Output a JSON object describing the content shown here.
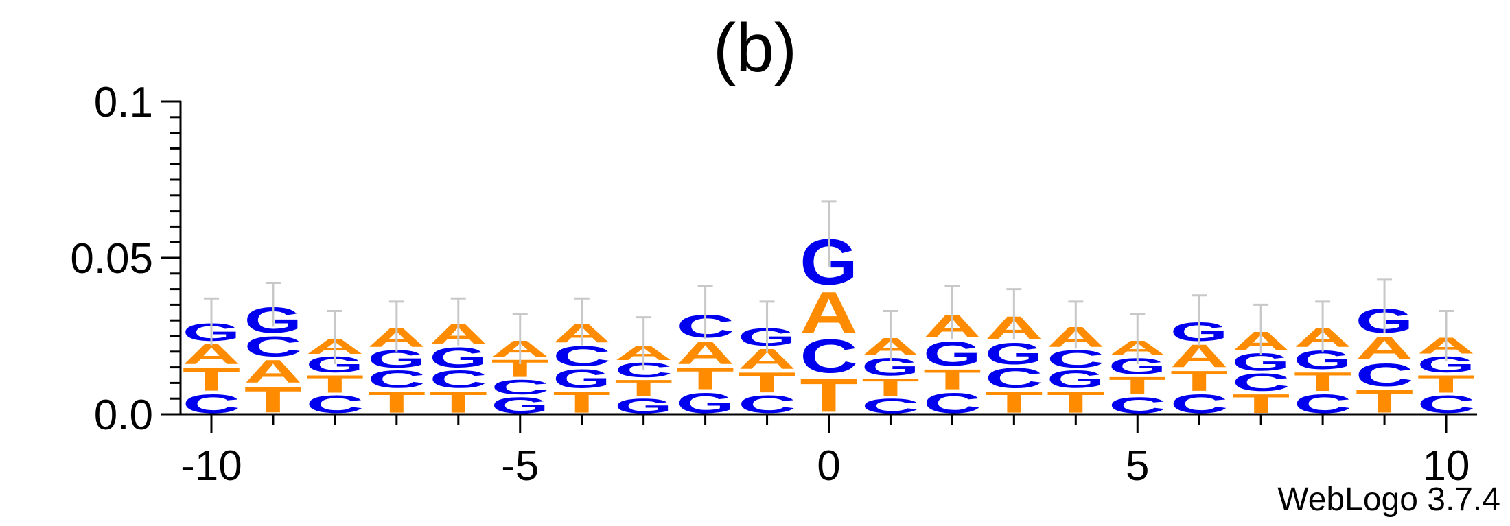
{
  "title": "(b)",
  "credit": "WebLogo 3.7.4",
  "colors": {
    "A": "#ff8c00",
    "T": "#ff8c00",
    "C": "#0000ee",
    "G": "#0000ee",
    "error_bar": "#c8c8c8",
    "axis": "#000000"
  },
  "chart_data": {
    "type": "sequence-logo",
    "title": "(b)",
    "xlabel": "",
    "ylabel": "",
    "xlim": [
      -10.5,
      10.5
    ],
    "ylim": [
      0,
      0.1
    ],
    "x_ticks": [
      -10,
      -5,
      0,
      5,
      10
    ],
    "y_ticks": [
      0.0,
      0.05,
      0.1
    ],
    "y_tick_labels": [
      "0.0",
      "0.05",
      "0.1"
    ],
    "x_tick_labels": [
      "-10",
      "-5",
      "0",
      "5",
      "10"
    ],
    "positions": [
      {
        "x": -10,
        "error_top": 0.037,
        "stack": [
          {
            "letter": "C",
            "height": 0.007
          },
          {
            "letter": "T",
            "height": 0.0085
          },
          {
            "letter": "A",
            "height": 0.0075
          },
          {
            "letter": "G",
            "height": 0.0065
          }
        ]
      },
      {
        "x": -9,
        "error_top": 0.042,
        "stack": [
          {
            "letter": "T",
            "height": 0.0095
          },
          {
            "letter": "A",
            "height": 0.0085
          },
          {
            "letter": "C",
            "height": 0.0075
          },
          {
            "letter": "G",
            "height": 0.0095
          }
        ]
      },
      {
        "x": -8,
        "error_top": 0.033,
        "stack": [
          {
            "letter": "C",
            "height": 0.0065
          },
          {
            "letter": "T",
            "height": 0.0065
          },
          {
            "letter": "G",
            "height": 0.006
          },
          {
            "letter": "A",
            "height": 0.0055
          }
        ]
      },
      {
        "x": -7,
        "error_top": 0.036,
        "stack": [
          {
            "letter": "T",
            "height": 0.008
          },
          {
            "letter": "C",
            "height": 0.0065
          },
          {
            "letter": "G",
            "height": 0.0065
          },
          {
            "letter": "A",
            "height": 0.007
          }
        ]
      },
      {
        "x": -6,
        "error_top": 0.037,
        "stack": [
          {
            "letter": "T",
            "height": 0.008
          },
          {
            "letter": "C",
            "height": 0.0065
          },
          {
            "letter": "G",
            "height": 0.0075
          },
          {
            "letter": "A",
            "height": 0.0075
          }
        ]
      },
      {
        "x": -5,
        "error_top": 0.032,
        "stack": [
          {
            "letter": "G",
            "height": 0.006
          },
          {
            "letter": "C",
            "height": 0.0055
          },
          {
            "letter": "T",
            "height": 0.0065
          },
          {
            "letter": "A",
            "height": 0.006
          }
        ]
      },
      {
        "x": -4,
        "error_top": 0.037,
        "stack": [
          {
            "letter": "T",
            "height": 0.008
          },
          {
            "letter": "G",
            "height": 0.007
          },
          {
            "letter": "C",
            "height": 0.0075
          },
          {
            "letter": "A",
            "height": 0.007
          }
        ]
      },
      {
        "x": -3,
        "error_top": 0.031,
        "stack": [
          {
            "letter": "G",
            "height": 0.0055
          },
          {
            "letter": "T",
            "height": 0.006
          },
          {
            "letter": "C",
            "height": 0.0055
          },
          {
            "letter": "A",
            "height": 0.0055
          }
        ]
      },
      {
        "x": -2,
        "error_top": 0.041,
        "stack": [
          {
            "letter": "G",
            "height": 0.0075
          },
          {
            "letter": "T",
            "height": 0.008
          },
          {
            "letter": "A",
            "height": 0.0085
          },
          {
            "letter": "C",
            "height": 0.0085
          }
        ]
      },
      {
        "x": -1,
        "error_top": 0.036,
        "stack": [
          {
            "letter": "C",
            "height": 0.0065
          },
          {
            "letter": "T",
            "height": 0.0075
          },
          {
            "letter": "A",
            "height": 0.0075
          },
          {
            "letter": "G",
            "height": 0.0065
          }
        ]
      },
      {
        "x": 0,
        "error_top": 0.068,
        "stack": [
          {
            "letter": "T",
            "height": 0.0125
          },
          {
            "letter": "C",
            "height": 0.0125
          },
          {
            "letter": "A",
            "height": 0.0155
          },
          {
            "letter": "G",
            "height": 0.017
          }
        ]
      },
      {
        "x": 1,
        "error_top": 0.033,
        "stack": [
          {
            "letter": "C",
            "height": 0.0055
          },
          {
            "letter": "T",
            "height": 0.0065
          },
          {
            "letter": "G",
            "height": 0.0065
          },
          {
            "letter": "A",
            "height": 0.0065
          }
        ]
      },
      {
        "x": 2,
        "error_top": 0.041,
        "stack": [
          {
            "letter": "C",
            "height": 0.0075
          },
          {
            "letter": "T",
            "height": 0.0075
          },
          {
            "letter": "G",
            "height": 0.009
          },
          {
            "letter": "A",
            "height": 0.0085
          }
        ]
      },
      {
        "x": 3,
        "error_top": 0.04,
        "stack": [
          {
            "letter": "T",
            "height": 0.008
          },
          {
            "letter": "C",
            "height": 0.0075
          },
          {
            "letter": "G",
            "height": 0.008
          },
          {
            "letter": "A",
            "height": 0.0085
          }
        ]
      },
      {
        "x": 4,
        "error_top": 0.036,
        "stack": [
          {
            "letter": "T",
            "height": 0.008
          },
          {
            "letter": "G",
            "height": 0.0065
          },
          {
            "letter": "C",
            "height": 0.0065
          },
          {
            "letter": "A",
            "height": 0.0075
          }
        ]
      },
      {
        "x": 5,
        "error_top": 0.032,
        "stack": [
          {
            "letter": "C",
            "height": 0.006
          },
          {
            "letter": "T",
            "height": 0.0065
          },
          {
            "letter": "G",
            "height": 0.006
          },
          {
            "letter": "A",
            "height": 0.0055
          }
        ]
      },
      {
        "x": 6,
        "error_top": 0.038,
        "stack": [
          {
            "letter": "C",
            "height": 0.007
          },
          {
            "letter": "T",
            "height": 0.0075
          },
          {
            "letter": "A",
            "height": 0.0085
          },
          {
            "letter": "G",
            "height": 0.007
          }
        ]
      },
      {
        "x": 7,
        "error_top": 0.035,
        "stack": [
          {
            "letter": "T",
            "height": 0.007
          },
          {
            "letter": "C",
            "height": 0.0065
          },
          {
            "letter": "G",
            "height": 0.0065
          },
          {
            "letter": "A",
            "height": 0.007
          }
        ]
      },
      {
        "x": 8,
        "error_top": 0.036,
        "stack": [
          {
            "letter": "C",
            "height": 0.007
          },
          {
            "letter": "T",
            "height": 0.007
          },
          {
            "letter": "G",
            "height": 0.007
          },
          {
            "letter": "A",
            "height": 0.007
          }
        ]
      },
      {
        "x": 9,
        "error_top": 0.043,
        "stack": [
          {
            "letter": "T",
            "height": 0.0085
          },
          {
            "letter": "C",
            "height": 0.0085
          },
          {
            "letter": "A",
            "height": 0.0085
          },
          {
            "letter": "G",
            "height": 0.009
          }
        ]
      },
      {
        "x": 10,
        "error_top": 0.033,
        "stack": [
          {
            "letter": "C",
            "height": 0.0065
          },
          {
            "letter": "T",
            "height": 0.0065
          },
          {
            "letter": "G",
            "height": 0.006
          },
          {
            "letter": "A",
            "height": 0.006
          }
        ]
      }
    ]
  }
}
